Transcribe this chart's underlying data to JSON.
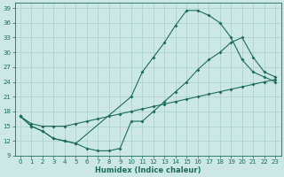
{
  "xlabel": "Humidex (Indice chaleur)",
  "bg_color": "#cce8e4",
  "grid_color": "#aacfcb",
  "line_color": "#1e6b5e",
  "xlim": [
    -0.5,
    23.5
  ],
  "ylim": [
    9,
    40
  ],
  "yticks": [
    9,
    12,
    15,
    18,
    21,
    24,
    27,
    30,
    33,
    36,
    39
  ],
  "xticks": [
    0,
    1,
    2,
    3,
    4,
    5,
    6,
    7,
    8,
    9,
    10,
    11,
    12,
    13,
    14,
    15,
    16,
    17,
    18,
    19,
    20,
    21,
    22,
    23
  ],
  "line1_x": [
    0,
    1,
    2,
    3,
    4,
    5,
    10,
    11,
    12,
    13,
    14,
    15,
    16,
    17,
    18,
    19,
    20,
    21,
    22,
    23
  ],
  "line1_y": [
    17,
    15,
    14,
    12.5,
    12,
    11.5,
    21,
    26,
    29,
    32,
    35.5,
    38.5,
    38.5,
    37.5,
    36,
    33,
    28.5,
    26,
    25,
    24
  ],
  "line2_x": [
    0,
    1,
    2,
    3,
    4,
    5,
    6,
    7,
    8,
    9,
    10,
    11,
    12,
    13,
    14,
    15,
    16,
    17,
    18,
    19,
    20,
    21,
    22,
    23
  ],
  "line2_y": [
    17,
    15,
    14,
    12.5,
    12,
    11.5,
    10.5,
    10,
    10,
    10.5,
    16,
    16,
    18,
    20,
    22,
    24,
    26.5,
    28.5,
    30,
    32,
    33,
    29,
    26,
    25
  ],
  "line3_x": [
    0,
    1,
    2,
    3,
    4,
    5,
    6,
    7,
    8,
    9,
    10,
    11,
    12,
    13,
    14,
    15,
    16,
    17,
    18,
    19,
    20,
    21,
    22,
    23
  ],
  "line3_y": [
    17,
    15.5,
    15,
    15,
    15,
    15.5,
    16,
    16.5,
    17,
    17.5,
    18,
    18.5,
    19,
    19.5,
    20,
    20.5,
    21,
    21.5,
    22,
    22.5,
    23,
    23.5,
    24,
    24.5
  ],
  "tick_fontsize": 5,
  "xlabel_fontsize": 6,
  "marker_size": 2,
  "linewidth": 0.8
}
